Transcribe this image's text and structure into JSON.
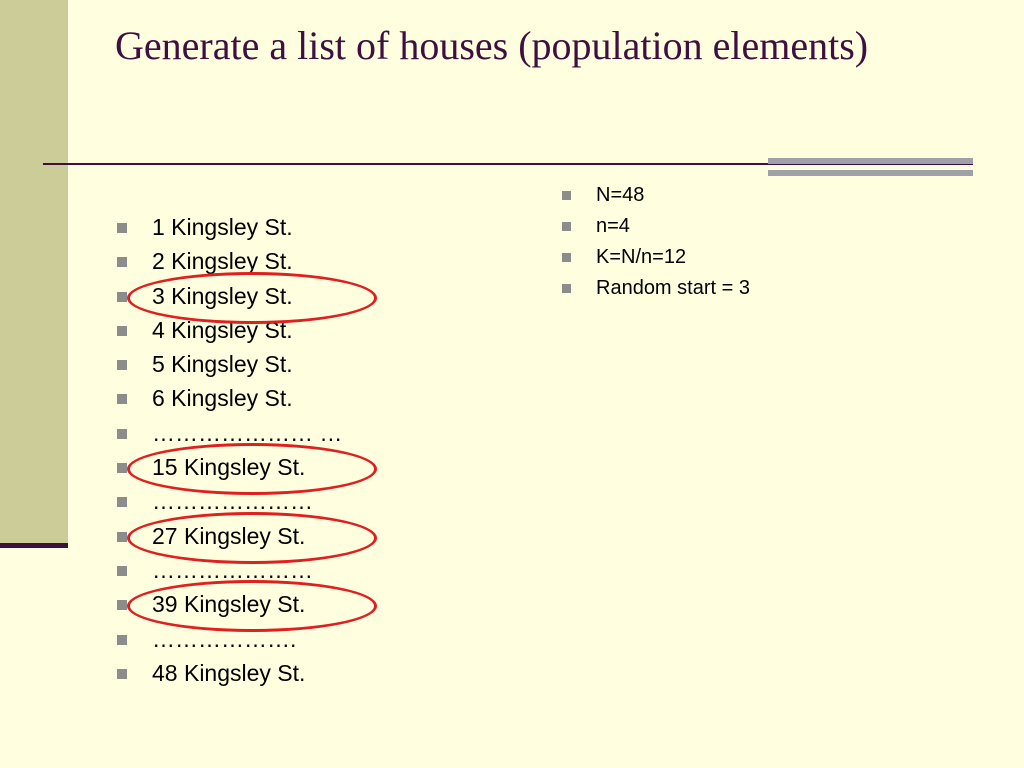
{
  "slide": {
    "title": "Generate a list of houses (population elements)",
    "houses": [
      "1  Kingsley St.",
      "2  Kingsley St.",
      "3  Kingsley St.",
      "4  Kingsley St.",
      "5  Kingsley St.",
      "6  Kingsley St.",
      "………………… …",
      "15  Kingsley St.",
      "…………………",
      "27  Kingsley St.",
      "…………………",
      "39 Kingsley St.",
      "……………….",
      "48  Kingsley St."
    ],
    "parameters": [
      "N=48",
      "n=4",
      "K=N/n=12",
      "Random start = 3"
    ],
    "highlight_color": "#E02020",
    "title_color": "#3F0F3F",
    "background_color": "#FFFFE0"
  }
}
